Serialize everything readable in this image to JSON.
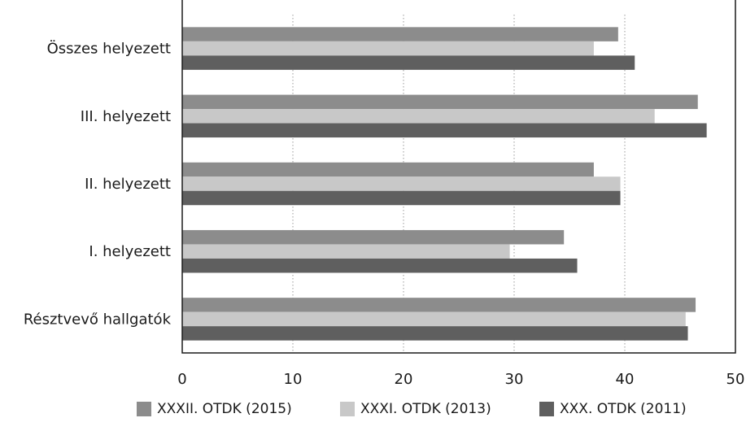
{
  "chart_data": {
    "type": "bar",
    "orientation": "horizontal",
    "title": "",
    "categories": [
      "Összes helyezett",
      "III. helyezett",
      "II. helyezett",
      "I. helyezett",
      "Résztvevő hallgatók"
    ],
    "series": [
      {
        "name": "XXXII. OTDK (2015)",
        "color": "#8c8c8c",
        "values": [
          39.4,
          46.6,
          37.2,
          34.5,
          46.4
        ]
      },
      {
        "name": "XXXI. OTDK (2013)",
        "color": "#c8c8c8",
        "values": [
          37.2,
          42.7,
          39.6,
          29.6,
          45.5
        ]
      },
      {
        "name": "XXX. OTDK (2011)",
        "color": "#5f5f5f",
        "values": [
          40.9,
          47.4,
          39.6,
          35.7,
          45.7
        ]
      }
    ],
    "xticks": [
      0,
      10,
      20,
      30,
      40,
      50
    ],
    "xlim": [
      0,
      50
    ],
    "grid": "vertical-dotted",
    "legend_position": "bottom"
  }
}
